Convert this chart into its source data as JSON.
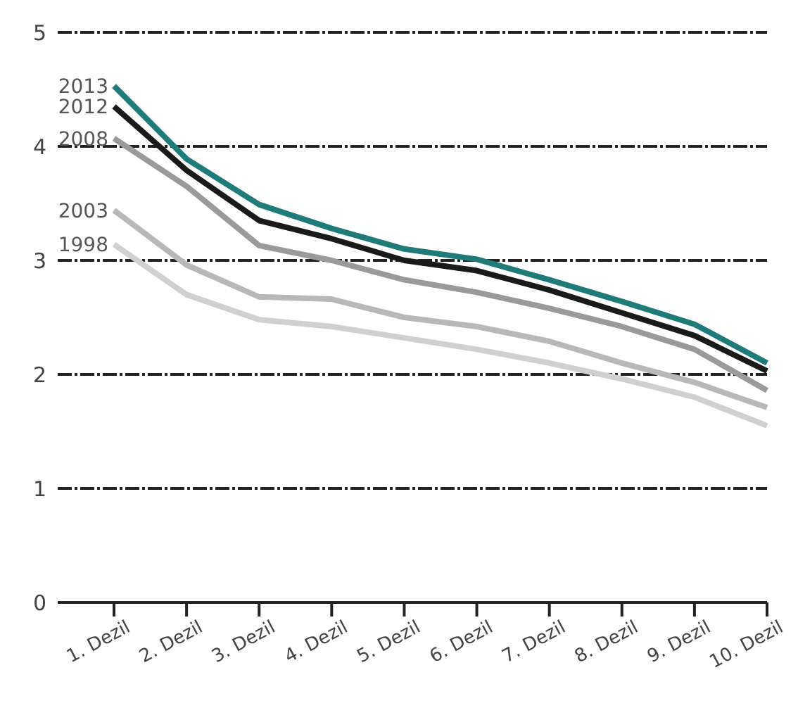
{
  "chart_data": {
    "type": "line",
    "categories": [
      "1. Dezil",
      "2. Dezil",
      "3. Dezil",
      "4. Dezil",
      "5. Dezil",
      "6. Dezil",
      "7. Dezil",
      "8. Dezil",
      "9. Dezil",
      "10. Dezil"
    ],
    "series": [
      {
        "name": "2013",
        "color": "#1f7a7a",
        "values": [
          4.53,
          3.89,
          3.49,
          3.28,
          3.1,
          3.01,
          2.83,
          2.64,
          2.44,
          2.1
        ]
      },
      {
        "name": "2012",
        "color": "#1a1a1a",
        "values": [
          4.35,
          3.79,
          3.35,
          3.19,
          3.0,
          2.91,
          2.74,
          2.54,
          2.34,
          2.03
        ]
      },
      {
        "name": "2008",
        "color": "#9a9a9a",
        "values": [
          4.07,
          3.65,
          3.13,
          3.0,
          2.83,
          2.72,
          2.58,
          2.42,
          2.22,
          1.86
        ]
      },
      {
        "name": "2003",
        "color": "#b8b8b8",
        "values": [
          3.44,
          2.96,
          2.68,
          2.66,
          2.5,
          2.42,
          2.29,
          2.1,
          1.93,
          1.71
        ]
      },
      {
        "name": "1998",
        "color": "#d0d0d0",
        "values": [
          3.14,
          2.7,
          2.48,
          2.42,
          2.32,
          2.22,
          2.1,
          1.96,
          1.8,
          1.55
        ]
      }
    ],
    "ylim": [
      0,
      5
    ],
    "yticks": [
      0,
      1,
      2,
      3,
      4,
      5
    ],
    "grid": "y",
    "marker": "none",
    "line_style": "solid"
  }
}
